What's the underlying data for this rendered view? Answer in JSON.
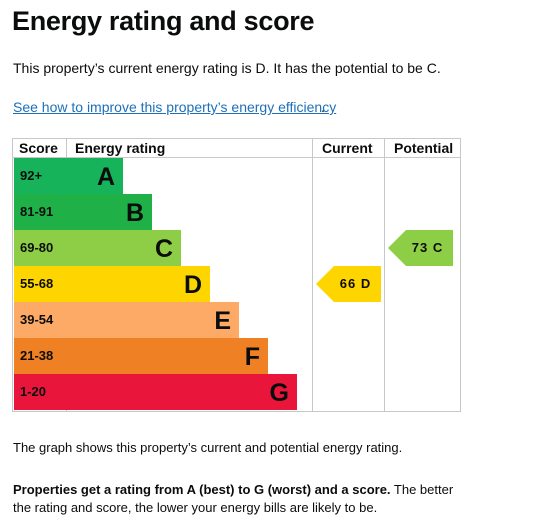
{
  "page": {
    "title": "Energy rating and score",
    "intro": "This property’s current energy rating is D. It has the potential to be C.",
    "improve_link": "See how to improve this property’s energy efficiency",
    "improve_link_stop": ".",
    "graph_note": "The graph shows this property’s current and potential energy rating.",
    "ratings_note_bold": "Properties get a rating from A (best) to G (worst) and a score.",
    "ratings_note_rest": " The better the rating and score, the lower your energy bills are likely to be."
  },
  "table": {
    "headers": {
      "score": "Score",
      "rating": "Energy rating",
      "current": "Current",
      "potential": "Potential"
    },
    "bands": [
      {
        "score": "92+",
        "letter": "A",
        "color": "#17b35a"
      },
      {
        "score": "81-91",
        "letter": "B",
        "color": "#1fb047"
      },
      {
        "score": "69-80",
        "letter": "C",
        "color": "#8dce46"
      },
      {
        "score": "55-68",
        "letter": "D",
        "color": "#ffd500"
      },
      {
        "score": "39-54",
        "letter": "E",
        "color": "#fcaa65"
      },
      {
        "score": "21-38",
        "letter": "F",
        "color": "#ef8023"
      },
      {
        "score": "1-20",
        "letter": "G",
        "color": "#e9153b"
      }
    ],
    "current": {
      "label": "66 D",
      "band": "D",
      "color": "#ffd500"
    },
    "potential": {
      "label": "73 C",
      "band": "C",
      "color": "#8dce46"
    }
  }
}
